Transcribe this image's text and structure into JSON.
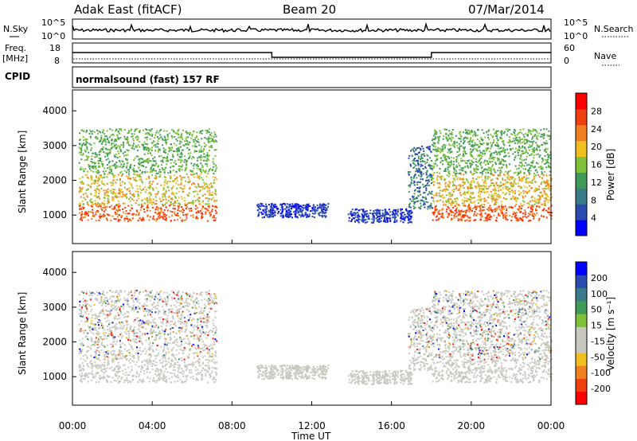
{
  "header": {
    "radar": "Adak East (fitACF)",
    "beam": "Beam 20",
    "date": "07/Mar/2014"
  },
  "noise_panel": {
    "left_label": "N.Sky",
    "right_label": "N.Search",
    "left_ticks": [
      "10^5",
      "10^0"
    ],
    "right_ticks": [
      "10^5",
      "10^0"
    ]
  },
  "freq_panel": {
    "left_label_1": "Freq.",
    "left_label_2": "[MHz]",
    "left_ticks": [
      "18",
      "8"
    ],
    "right_label": "Nave",
    "right_ticks": [
      "60",
      "0"
    ],
    "freq_steps": [
      {
        "from_hour": 0,
        "to_hour": 10,
        "value": "high"
      },
      {
        "from_hour": 10,
        "to_hour": 18,
        "value": "low"
      },
      {
        "from_hour": 18,
        "to_hour": 24,
        "value": "high"
      }
    ]
  },
  "cpid": {
    "label": "CPID",
    "text": "normalsound (fast) 157 RF"
  },
  "chart_data": [
    {
      "type": "heatmap",
      "title": "",
      "xlabel": "Time UT",
      "ylabel": "Slant Range [km]",
      "xlim": [
        0,
        24
      ],
      "ylim": [
        180,
        4600
      ],
      "x_tick_labels": [
        "00:00",
        "04:00",
        "08:00",
        "12:00",
        "16:00",
        "20:00",
        "00:00"
      ],
      "y_tick_labels": [
        "1000",
        "2000",
        "3000",
        "4000"
      ],
      "colorbar": {
        "label": "Power [dB]",
        "ticks": [
          "28",
          "24",
          "20",
          "16",
          "12",
          "8",
          "4"
        ],
        "colors": [
          "#0000ff",
          "#2b4bb0",
          "#3a7a8a",
          "#3f9a5a",
          "#7fc23a",
          "#f0c020",
          "#f08020",
          "#f04010",
          "#ff0000"
        ]
      }
    },
    {
      "type": "heatmap",
      "title": "",
      "xlabel": "Time UT",
      "ylabel": "Slant Range [km]",
      "xlim": [
        0,
        24
      ],
      "ylim": [
        180,
        4600
      ],
      "x_tick_labels": [
        "00:00",
        "04:00",
        "08:00",
        "12:00",
        "16:00",
        "20:00",
        "00:00"
      ],
      "y_tick_labels": [
        "1000",
        "2000",
        "3000",
        "4000"
      ],
      "colorbar": {
        "label": "Velocity [m s⁻¹]",
        "ticks": [
          "200",
          "100",
          "50",
          "15",
          "-15",
          "-50",
          "-100",
          "-200"
        ],
        "colors": [
          "#ff0000",
          "#f04010",
          "#f08020",
          "#f0c020",
          "#c8c8c0",
          "#c8c8c0",
          "#7fc23a",
          "#3f9a5a",
          "#3a7a8a",
          "#2b4bb0",
          "#0000ff"
        ]
      }
    }
  ],
  "time_axis_label": "Time UT",
  "colors": {
    "ground": "#c8c8c0",
    "ionos_low": "#2b4bb0",
    "ionos_high": "#ff3000"
  }
}
